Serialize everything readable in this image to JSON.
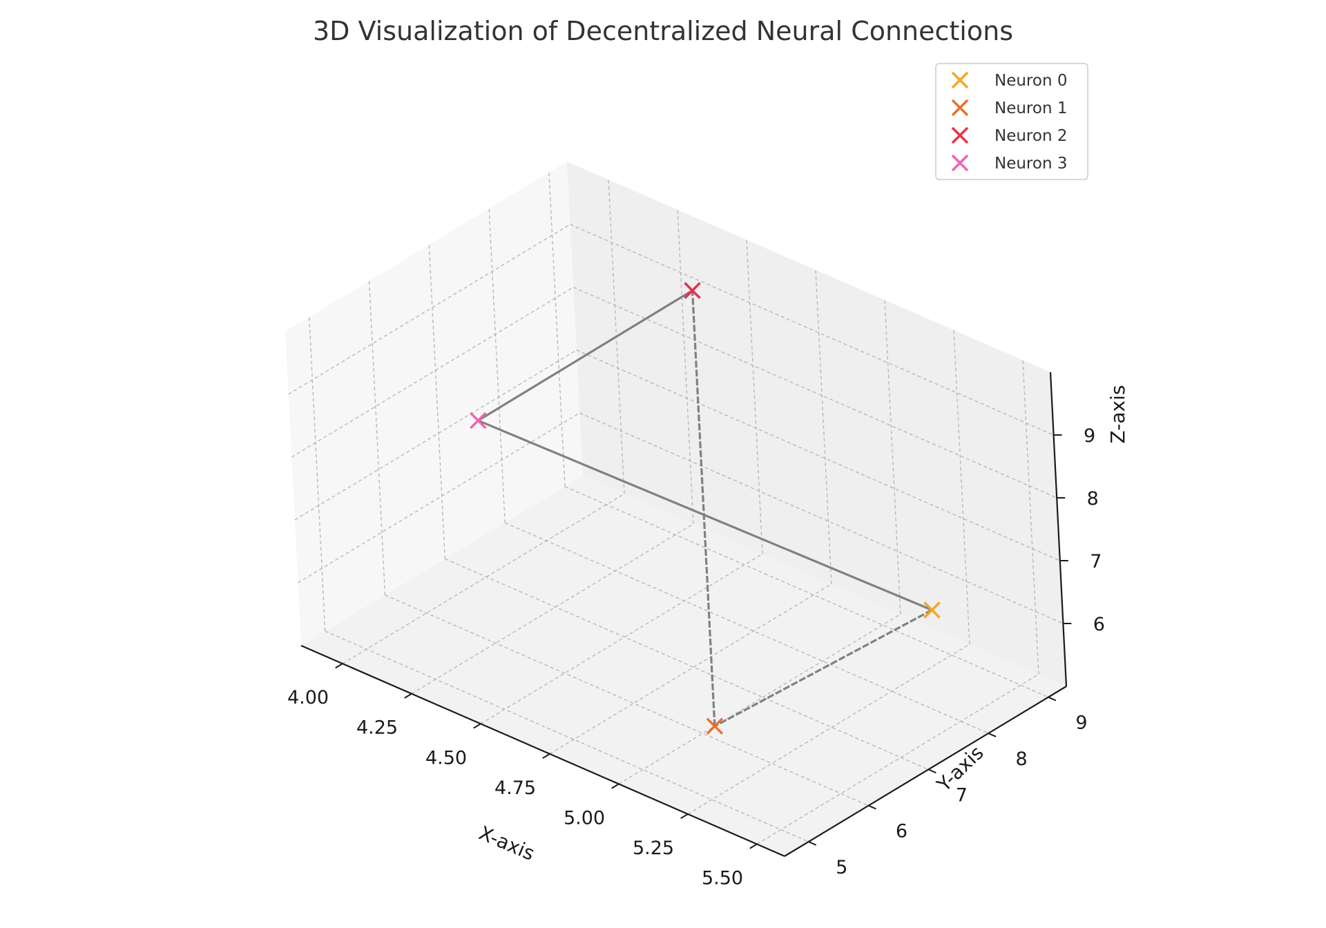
{
  "chart_data": {
    "type": "scatter",
    "projection": "3d",
    "title": "3D Visualization of Decentralized Neural Connections",
    "xlabel": "X-axis",
    "ylabel": "Y-axis",
    "zlabel": "Z-axis",
    "xlim": [
      3.85,
      5.6
    ],
    "ylim": [
      4.6,
      9.3
    ],
    "zlim": [
      5.0,
      10.0
    ],
    "x_ticks": [
      "4.00",
      "4.25",
      "4.50",
      "4.75",
      "5.00",
      "5.25",
      "5.50"
    ],
    "y_ticks": [
      "5",
      "6",
      "7",
      "8",
      "9"
    ],
    "z_ticks": [
      "6",
      "7",
      "8",
      "9"
    ],
    "grid": true,
    "legend_position": "top-right",
    "marker": "x",
    "series": [
      {
        "name": "Neuron 0",
        "color": "#f5a623",
        "x": 5.3,
        "y": 8.5,
        "z": 6.1
      },
      {
        "name": "Neuron 1",
        "color": "#e8702a",
        "x": 5.0,
        "y": 6.2,
        "z": 5.0
      },
      {
        "name": "Neuron 2",
        "color": "#e8304a",
        "x": 4.45,
        "y": 8.6,
        "z": 9.5
      },
      {
        "name": "Neuron 3",
        "color": "#f062b4",
        "x": 4.25,
        "y": 5.9,
        "z": 8.6
      }
    ],
    "connections": [
      {
        "from": 0,
        "to": 1,
        "style": "dashed"
      },
      {
        "from": 1,
        "to": 2,
        "style": "dashed"
      },
      {
        "from": 2,
        "to": 3,
        "style": "solid"
      },
      {
        "from": 3,
        "to": 0,
        "style": "solid"
      }
    ]
  }
}
